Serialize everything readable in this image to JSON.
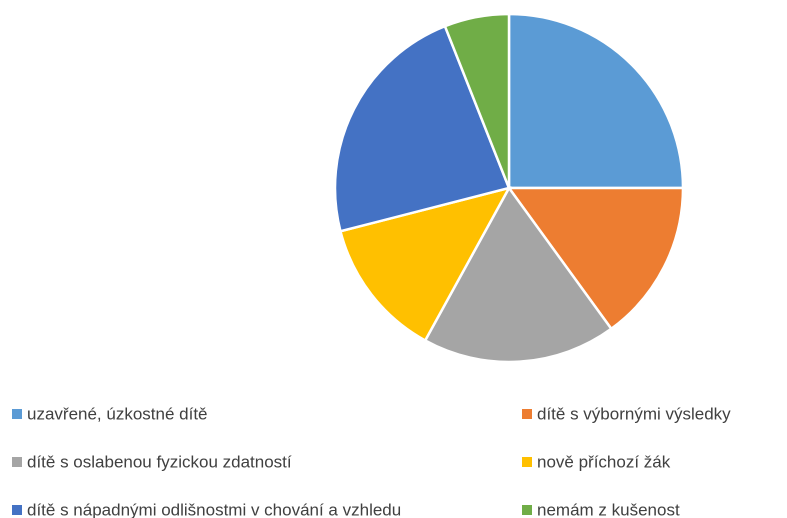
{
  "chart_data": {
    "type": "pie",
    "categories": [
      "uzavřené, úzkostné dítě",
      "dítě s výbornými výsledky",
      "dítě s oslabenou fyzickou zdatností",
      "nově příchozí žák",
      "dítě s nápadnými odlišnostmi v chování a vzhledu",
      "nemám z kušenost"
    ],
    "values": [
      25,
      15,
      18,
      13,
      23,
      6
    ],
    "colors": [
      "#5b9bd5",
      "#ed7d31",
      "#a5a5a5",
      "#ffc000",
      "#4472c4",
      "#70ad47"
    ],
    "legend": "bottom"
  }
}
